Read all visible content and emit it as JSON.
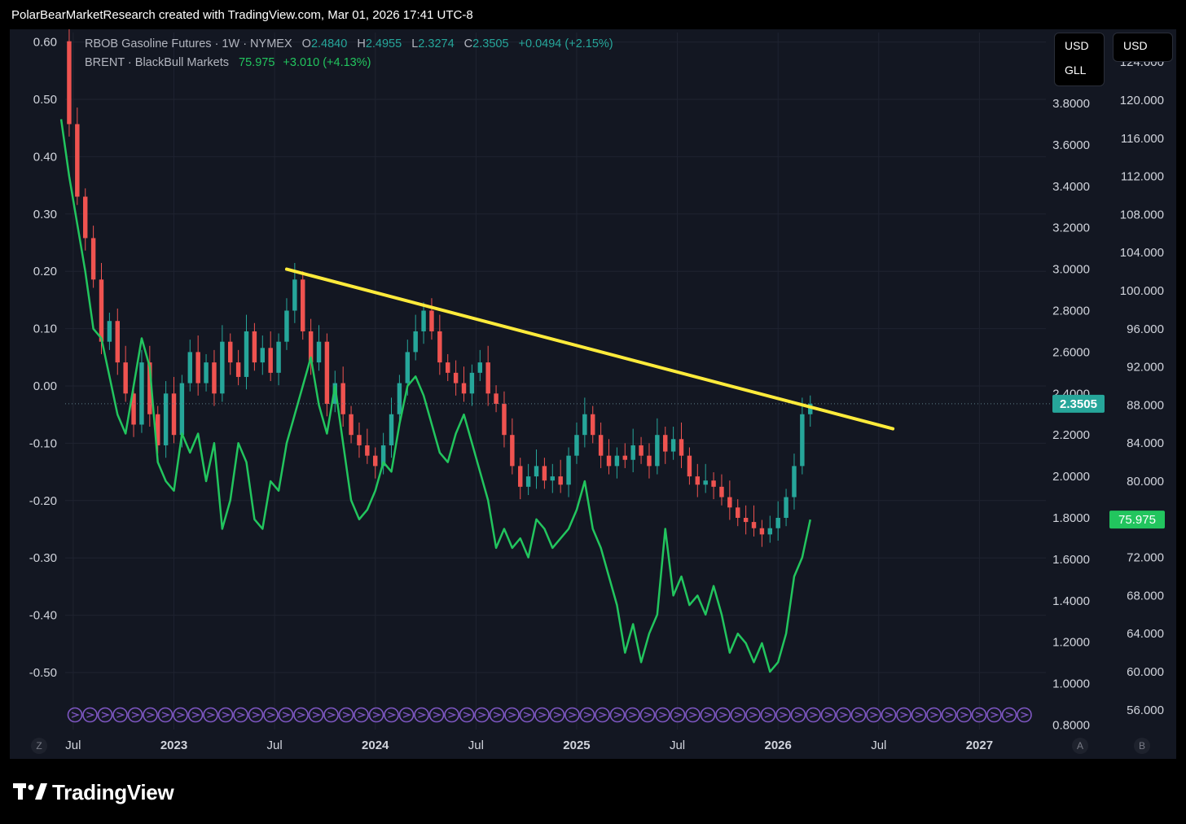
{
  "header": {
    "attribution": "PolarBearMarketResearch created with TradingView.com, Mar 01, 2026 17:41 UTC-8"
  },
  "legend": {
    "rbob": {
      "name": "RBOB Gasoline Futures · 1W · NYMEX",
      "o_label": "O",
      "o": "2.4840",
      "h_label": "H",
      "h": "2.4955",
      "l_label": "L",
      "l": "2.3274",
      "c_label": "C",
      "c": "2.3505",
      "change": "+0.0494 (+2.15%)"
    },
    "brent": {
      "name": "BRENT · BlackBull Markets",
      "last": "75.975",
      "change": "+3.010 (+4.13%)"
    }
  },
  "currency": {
    "left_axis": [
      "USD",
      "GLL"
    ],
    "right_axis": "USD"
  },
  "badges": {
    "rbob_last": "2.3505",
    "brent_last": "75.975"
  },
  "axis_buttons": {
    "z": "Z",
    "a": "A",
    "b": "B"
  },
  "branding": {
    "name": "TradingView"
  },
  "colors": {
    "background": "#131722",
    "up": "#26a69a",
    "down": "#ef5350",
    "brent": "#22c55e",
    "trendline": "#ffeb3b",
    "events": "#7e57c2"
  },
  "chart_data": {
    "type": "line",
    "x_ticks": [
      "Jul",
      "2023",
      "Jul",
      "2024",
      "Jul",
      "2025",
      "Jul",
      "2026",
      "Jul",
      "2027"
    ],
    "x_tick_years": [
      2022.5,
      2023.0,
      2023.5,
      2024.0,
      2024.5,
      2025.0,
      2025.5,
      2026.0,
      2026.5,
      2027.0
    ],
    "x_range": [
      2022.46,
      2027.33
    ],
    "left_axis": {
      "ticks": [
        "0.60",
        "0.50",
        "0.40",
        "0.30",
        "0.20",
        "0.10",
        "0.00",
        "-0.10",
        "-0.20",
        "-0.30",
        "-0.40",
        "-0.50"
      ],
      "range": [
        -0.5,
        0.6
      ]
    },
    "rbob_axis": {
      "ticks": [
        "3.8000",
        "3.6000",
        "3.4000",
        "3.2000",
        "3.0000",
        "2.8000",
        "2.6000",
        "2.4000",
        "2.2000",
        "2.0000",
        "1.8000",
        "1.6000",
        "1.4000",
        "1.2000",
        "1.0000",
        "0.8000"
      ],
      "range": [
        0.8,
        3.8
      ]
    },
    "brent_axis": {
      "ticks": [
        "124.000",
        "120.000",
        "116.000",
        "112.000",
        "108.000",
        "104.000",
        "100.000",
        "96.000",
        "92.000",
        "88.000",
        "84.000",
        "80.000",
        "76.000",
        "72.000",
        "68.000",
        "64.000",
        "60.000",
        "56.000"
      ],
      "range": [
        56,
        120
      ]
    },
    "series": [
      {
        "name": "RBOB Gasoline Futures",
        "style": "candles",
        "axis": "rbob",
        "points": [
          [
            2022.44,
            4.1
          ],
          [
            2022.48,
            3.7
          ],
          [
            2022.52,
            3.35
          ],
          [
            2022.56,
            3.15
          ],
          [
            2022.6,
            2.95
          ],
          [
            2022.64,
            2.65
          ],
          [
            2022.68,
            2.75
          ],
          [
            2022.72,
            2.55
          ],
          [
            2022.76,
            2.4
          ],
          [
            2022.8,
            2.25
          ],
          [
            2022.84,
            2.55
          ],
          [
            2022.88,
            2.3
          ],
          [
            2022.92,
            2.15
          ],
          [
            2022.96,
            2.4
          ],
          [
            2023.0,
            2.2
          ],
          [
            2023.04,
            2.45
          ],
          [
            2023.08,
            2.6
          ],
          [
            2023.12,
            2.45
          ],
          [
            2023.16,
            2.55
          ],
          [
            2023.2,
            2.4
          ],
          [
            2023.24,
            2.65
          ],
          [
            2023.28,
            2.55
          ],
          [
            2023.32,
            2.48
          ],
          [
            2023.36,
            2.7
          ],
          [
            2023.4,
            2.55
          ],
          [
            2023.44,
            2.62
          ],
          [
            2023.48,
            2.5
          ],
          [
            2023.52,
            2.65
          ],
          [
            2023.56,
            2.8
          ],
          [
            2023.6,
            2.95
          ],
          [
            2023.64,
            2.7
          ],
          [
            2023.68,
            2.55
          ],
          [
            2023.72,
            2.65
          ],
          [
            2023.76,
            2.35
          ],
          [
            2023.8,
            2.45
          ],
          [
            2023.84,
            2.3
          ],
          [
            2023.88,
            2.2
          ],
          [
            2023.92,
            2.15
          ],
          [
            2023.96,
            2.1
          ],
          [
            2024.0,
            2.05
          ],
          [
            2024.04,
            2.15
          ],
          [
            2024.08,
            2.3
          ],
          [
            2024.12,
            2.45
          ],
          [
            2024.16,
            2.6
          ],
          [
            2024.2,
            2.7
          ],
          [
            2024.24,
            2.8
          ],
          [
            2024.28,
            2.7
          ],
          [
            2024.32,
            2.55
          ],
          [
            2024.36,
            2.5
          ],
          [
            2024.4,
            2.45
          ],
          [
            2024.44,
            2.4
          ],
          [
            2024.48,
            2.5
          ],
          [
            2024.52,
            2.55
          ],
          [
            2024.56,
            2.4
          ],
          [
            2024.6,
            2.35
          ],
          [
            2024.64,
            2.2
          ],
          [
            2024.68,
            2.05
          ],
          [
            2024.72,
            1.95
          ],
          [
            2024.76,
            2.0
          ],
          [
            2024.8,
            2.05
          ],
          [
            2024.84,
            1.98
          ],
          [
            2024.88,
            2.0
          ],
          [
            2024.92,
            1.96
          ],
          [
            2024.96,
            2.1
          ],
          [
            2025.0,
            2.2
          ],
          [
            2025.04,
            2.3
          ],
          [
            2025.08,
            2.2
          ],
          [
            2025.12,
            2.1
          ],
          [
            2025.16,
            2.05
          ],
          [
            2025.2,
            2.1
          ],
          [
            2025.24,
            2.08
          ],
          [
            2025.28,
            2.15
          ],
          [
            2025.32,
            2.1
          ],
          [
            2025.36,
            2.05
          ],
          [
            2025.4,
            2.2
          ],
          [
            2025.44,
            2.12
          ],
          [
            2025.48,
            2.18
          ],
          [
            2025.52,
            2.1
          ],
          [
            2025.56,
            2.0
          ],
          [
            2025.6,
            1.96
          ],
          [
            2025.64,
            1.98
          ],
          [
            2025.68,
            1.95
          ],
          [
            2025.72,
            1.9
          ],
          [
            2025.76,
            1.85
          ],
          [
            2025.8,
            1.8
          ],
          [
            2025.84,
            1.78
          ],
          [
            2025.88,
            1.75
          ],
          [
            2025.92,
            1.72
          ],
          [
            2025.96,
            1.75
          ],
          [
            2026.0,
            1.8
          ],
          [
            2026.04,
            1.9
          ],
          [
            2026.08,
            2.05
          ],
          [
            2026.12,
            2.3
          ],
          [
            2026.16,
            2.3505
          ]
        ]
      },
      {
        "name": "BRENT",
        "style": "line",
        "axis": "brent",
        "points": [
          [
            2022.44,
            118
          ],
          [
            2022.48,
            112
          ],
          [
            2022.52,
            107
          ],
          [
            2022.56,
            102
          ],
          [
            2022.6,
            96
          ],
          [
            2022.64,
            95
          ],
          [
            2022.68,
            91
          ],
          [
            2022.72,
            87
          ],
          [
            2022.76,
            85
          ],
          [
            2022.8,
            90
          ],
          [
            2022.84,
            95
          ],
          [
            2022.88,
            92
          ],
          [
            2022.92,
            82
          ],
          [
            2022.96,
            80
          ],
          [
            2023.0,
            79
          ],
          [
            2023.04,
            85
          ],
          [
            2023.08,
            83
          ],
          [
            2023.12,
            85
          ],
          [
            2023.16,
            80
          ],
          [
            2023.2,
            84
          ],
          [
            2023.24,
            75
          ],
          [
            2023.28,
            78
          ],
          [
            2023.32,
            84
          ],
          [
            2023.36,
            82
          ],
          [
            2023.4,
            76
          ],
          [
            2023.44,
            75
          ],
          [
            2023.48,
            80
          ],
          [
            2023.52,
            79
          ],
          [
            2023.56,
            84
          ],
          [
            2023.6,
            87
          ],
          [
            2023.64,
            90
          ],
          [
            2023.68,
            93
          ],
          [
            2023.72,
            88
          ],
          [
            2023.76,
            85
          ],
          [
            2023.8,
            90
          ],
          [
            2023.84,
            84
          ],
          [
            2023.88,
            78
          ],
          [
            2023.92,
            76
          ],
          [
            2023.96,
            77
          ],
          [
            2024.0,
            79
          ],
          [
            2024.04,
            82
          ],
          [
            2024.08,
            81
          ],
          [
            2024.12,
            86
          ],
          [
            2024.16,
            90
          ],
          [
            2024.2,
            91
          ],
          [
            2024.24,
            89
          ],
          [
            2024.28,
            86
          ],
          [
            2024.32,
            83
          ],
          [
            2024.36,
            82
          ],
          [
            2024.4,
            85
          ],
          [
            2024.44,
            87
          ],
          [
            2024.48,
            84
          ],
          [
            2024.52,
            81
          ],
          [
            2024.56,
            78
          ],
          [
            2024.6,
            73
          ],
          [
            2024.64,
            75
          ],
          [
            2024.68,
            73
          ],
          [
            2024.72,
            74
          ],
          [
            2024.76,
            72
          ],
          [
            2024.8,
            76
          ],
          [
            2024.84,
            75
          ],
          [
            2024.88,
            73
          ],
          [
            2024.92,
            74
          ],
          [
            2024.96,
            75
          ],
          [
            2025.0,
            77
          ],
          [
            2025.04,
            80
          ],
          [
            2025.08,
            75
          ],
          [
            2025.12,
            73
          ],
          [
            2025.16,
            70
          ],
          [
            2025.2,
            67
          ],
          [
            2025.24,
            62
          ],
          [
            2025.28,
            65
          ],
          [
            2025.32,
            61
          ],
          [
            2025.36,
            64
          ],
          [
            2025.4,
            66
          ],
          [
            2025.44,
            75
          ],
          [
            2025.48,
            68
          ],
          [
            2025.52,
            70
          ],
          [
            2025.56,
            67
          ],
          [
            2025.6,
            68
          ],
          [
            2025.64,
            66
          ],
          [
            2025.68,
            69
          ],
          [
            2025.72,
            66
          ],
          [
            2025.76,
            62
          ],
          [
            2025.8,
            64
          ],
          [
            2025.84,
            63
          ],
          [
            2025.88,
            61
          ],
          [
            2025.92,
            63
          ],
          [
            2025.96,
            60
          ],
          [
            2026.0,
            61
          ],
          [
            2026.04,
            64
          ],
          [
            2026.08,
            70
          ],
          [
            2026.12,
            72
          ],
          [
            2026.16,
            75.975
          ]
        ]
      }
    ],
    "annotations": [
      {
        "type": "trendline",
        "from": [
          2023.56,
          3.0
        ],
        "to": [
          2026.57,
          2.23
        ]
      }
    ],
    "grid": true,
    "legend": "top-left"
  }
}
